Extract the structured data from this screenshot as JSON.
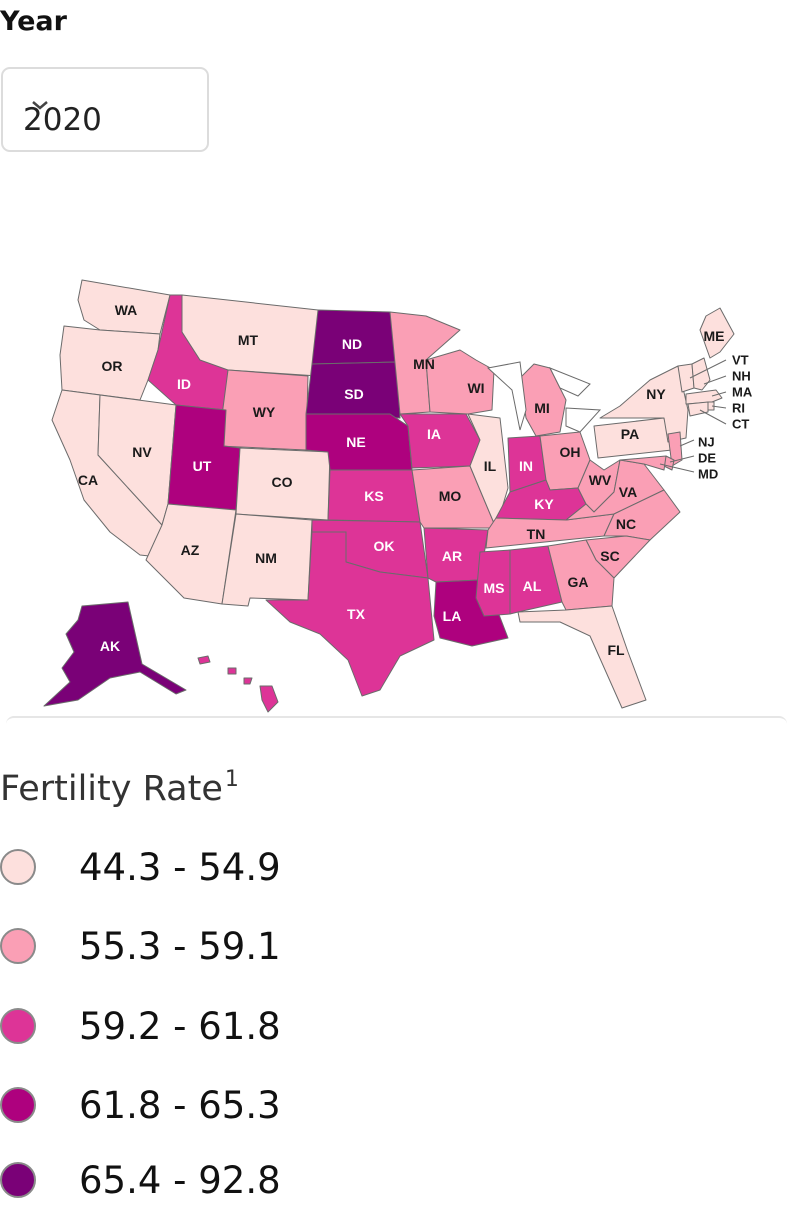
{
  "year_filter": {
    "label": "Year",
    "value": "2020",
    "icon": "chevron-down-icon"
  },
  "legend": {
    "title": "Fertility Rate",
    "footnote": "1",
    "bins": [
      {
        "label": "44.3 - 54.9",
        "color": "#fde0dd"
      },
      {
        "label": "55.3 - 59.1",
        "color": "#fa9fb5"
      },
      {
        "label": "59.2 - 61.8",
        "color": "#dd3497"
      },
      {
        "label": "61.8 - 65.3",
        "color": "#ae017e"
      },
      {
        "label": "65.4 - 92.8",
        "color": "#7a0177"
      }
    ]
  },
  "states": [
    {
      "abbr": "WA",
      "bin": 0
    },
    {
      "abbr": "OR",
      "bin": 0
    },
    {
      "abbr": "CA",
      "bin": 0
    },
    {
      "abbr": "NV",
      "bin": 0
    },
    {
      "abbr": "ID",
      "bin": 2
    },
    {
      "abbr": "MT",
      "bin": 0
    },
    {
      "abbr": "WY",
      "bin": 1
    },
    {
      "abbr": "UT",
      "bin": 3
    },
    {
      "abbr": "AZ",
      "bin": 0
    },
    {
      "abbr": "CO",
      "bin": 0
    },
    {
      "abbr": "NM",
      "bin": 0
    },
    {
      "abbr": "ND",
      "bin": 4
    },
    {
      "abbr": "SD",
      "bin": 4
    },
    {
      "abbr": "NE",
      "bin": 3
    },
    {
      "abbr": "KS",
      "bin": 2
    },
    {
      "abbr": "OK",
      "bin": 2
    },
    {
      "abbr": "TX",
      "bin": 2
    },
    {
      "abbr": "MN",
      "bin": 1
    },
    {
      "abbr": "IA",
      "bin": 2
    },
    {
      "abbr": "MO",
      "bin": 1
    },
    {
      "abbr": "AR",
      "bin": 2
    },
    {
      "abbr": "LA",
      "bin": 3
    },
    {
      "abbr": "WI",
      "bin": 1
    },
    {
      "abbr": "IL",
      "bin": 0
    },
    {
      "abbr": "MI",
      "bin": 1
    },
    {
      "abbr": "IN",
      "bin": 2
    },
    {
      "abbr": "KY",
      "bin": 2
    },
    {
      "abbr": "TN",
      "bin": 1
    },
    {
      "abbr": "MS",
      "bin": 2
    },
    {
      "abbr": "AL",
      "bin": 2
    },
    {
      "abbr": "OH",
      "bin": 1
    },
    {
      "abbr": "WV",
      "bin": 1
    },
    {
      "abbr": "VA",
      "bin": 1
    },
    {
      "abbr": "NC",
      "bin": 1
    },
    {
      "abbr": "SC",
      "bin": 1
    },
    {
      "abbr": "GA",
      "bin": 1
    },
    {
      "abbr": "FL",
      "bin": 0
    },
    {
      "abbr": "PA",
      "bin": 0
    },
    {
      "abbr": "NY",
      "bin": 0
    },
    {
      "abbr": "ME",
      "bin": 0
    },
    {
      "abbr": "VT",
      "bin": 0
    },
    {
      "abbr": "NH",
      "bin": 0
    },
    {
      "abbr": "MA",
      "bin": 0
    },
    {
      "abbr": "RI",
      "bin": 0
    },
    {
      "abbr": "CT",
      "bin": 0
    },
    {
      "abbr": "NJ",
      "bin": 1
    },
    {
      "abbr": "DE",
      "bin": 1
    },
    {
      "abbr": "MD",
      "bin": 1
    },
    {
      "abbr": "AK",
      "bin": 4
    },
    {
      "abbr": "HI",
      "bin": 2
    }
  ]
}
